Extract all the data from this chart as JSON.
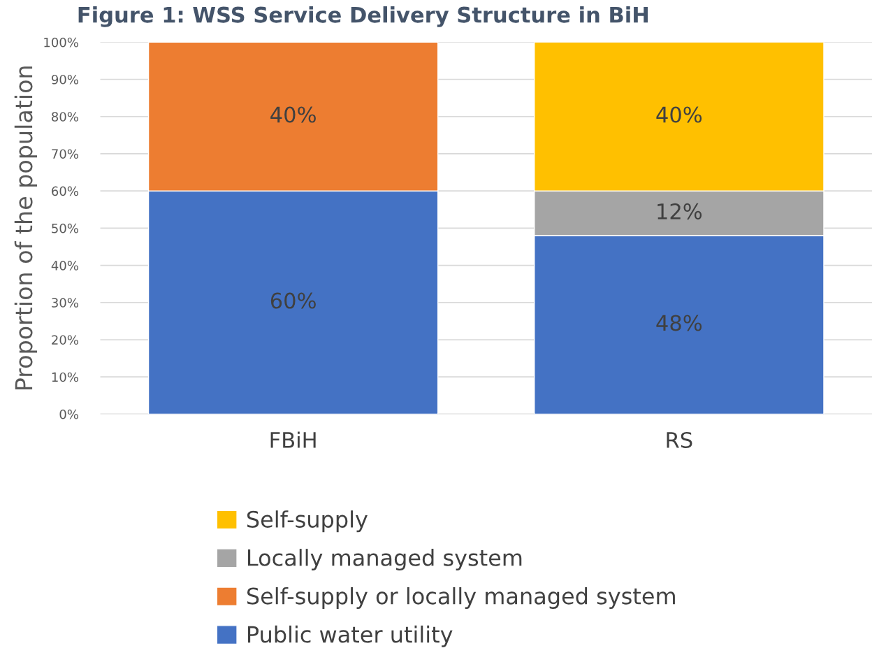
{
  "chart_data": {
    "type": "bar",
    "title": "Figure 1: WSS Service Delivery Structure in BiH",
    "ylabel": "Proportion of the population",
    "categories": [
      "FBiH",
      "RS"
    ],
    "stacked": true,
    "series": [
      {
        "name": "Public water utility",
        "color": "#4472c4",
        "values": [
          60,
          48
        ],
        "value_labels": [
          "60%",
          "48%"
        ]
      },
      {
        "name": "Self-supply or locally managed system",
        "color": "#ed7d31",
        "values": [
          40,
          null
        ],
        "value_labels": [
          "40%",
          null
        ]
      },
      {
        "name": "Locally managed system",
        "color": "#a5a5a5",
        "values": [
          null,
          12
        ],
        "value_labels": [
          null,
          "12%"
        ]
      },
      {
        "name": "Self-supply",
        "color": "#ffc000",
        "values": [
          null,
          40
        ],
        "value_labels": [
          null,
          "40%"
        ]
      }
    ],
    "ylim": [
      0,
      100
    ],
    "yticks": [
      {
        "value": 0,
        "label": "0%"
      },
      {
        "value": 10,
        "label": "10%"
      },
      {
        "value": 20,
        "label": "20%"
      },
      {
        "value": 30,
        "label": "30%"
      },
      {
        "value": 40,
        "label": "40%"
      },
      {
        "value": 50,
        "label": "50%"
      },
      {
        "value": 60,
        "label": "60%"
      },
      {
        "value": 70,
        "label": "70%"
      },
      {
        "value": 80,
        "label": "80%"
      },
      {
        "value": 90,
        "label": "90%"
      },
      {
        "value": 100,
        "label": "100%"
      }
    ],
    "grid": "y",
    "legend": "bottom"
  }
}
